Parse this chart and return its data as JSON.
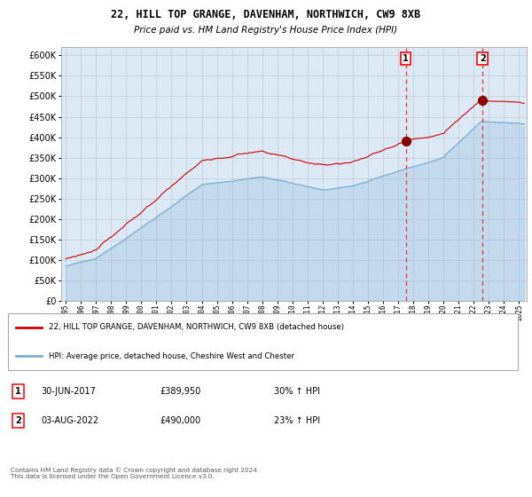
{
  "title1": "22, HILL TOP GRANGE, DAVENHAM, NORTHWICH, CW9 8XB",
  "title2": "Price paid vs. HM Land Registry's House Price Index (HPI)",
  "legend_line1": "22, HILL TOP GRANGE, DAVENHAM, NORTHWICH, CW9 8XB (detached house)",
  "legend_line2": "HPI: Average price, detached house, Cheshire West and Chester",
  "sale1_label": "1",
  "sale1_date": "30-JUN-2017",
  "sale1_price": "£389,950",
  "sale1_hpi": "30% ↑ HPI",
  "sale1_year": 2017.5,
  "sale1_value": 389950,
  "sale2_label": "2",
  "sale2_date": "03-AUG-2022",
  "sale2_price": "£490,000",
  "sale2_hpi": "23% ↑ HPI",
  "sale2_year": 2022.58,
  "sale2_value": 490000,
  "yticks": [
    0,
    50000,
    100000,
    150000,
    200000,
    250000,
    300000,
    350000,
    400000,
    450000,
    500000,
    550000,
    600000
  ],
  "ylim": [
    0,
    620000
  ],
  "xlim_start": 1994.7,
  "xlim_end": 2025.5,
  "background_color": "#ffffff",
  "plot_bg_color": "#dce9f5",
  "grid_color": "#c0cad8",
  "red_line_color": "#cc0000",
  "blue_line_color": "#7bafd4",
  "dashed_line_color": "#ee3333",
  "sale_dot_color": "#880000",
  "footer": "Contains HM Land Registry data © Crown copyright and database right 2024.\nThis data is licensed under the Open Government Licence v3.0."
}
